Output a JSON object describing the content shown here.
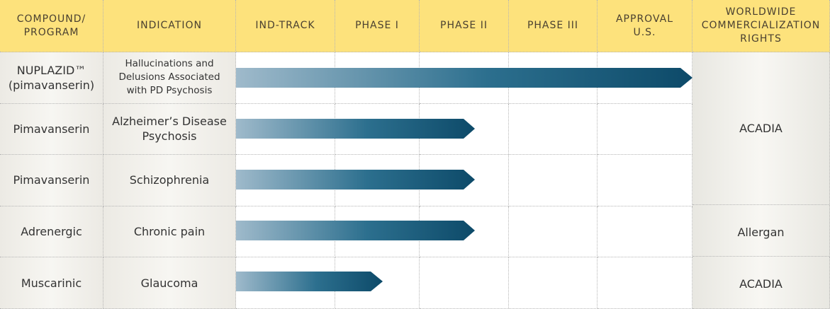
{
  "header": [
    "COMPOUND/ PROGRAM",
    "INDICATION",
    "IND-TRACK",
    "PHASE I",
    "PHASE II",
    "PHASE III",
    "APPROVAL U.S.",
    "WORLDWIDE COMMERCIALIZATION RIGHTS"
  ],
  "rows": [
    {
      "compound": "NUPLAZID™ (pimavanserin)",
      "indication": "Hallucinations and Delusions Associated with PD Psychosis"
    },
    {
      "compound": "Pimavanserin",
      "indication": "Alzheimer’s Disease Psychosis"
    },
    {
      "compound": "Pimavanserin",
      "indication": "Schizophrenia"
    },
    {
      "compound": "Adrenergic",
      "indication": "Chronic pain"
    },
    {
      "compound": "Muscarinic",
      "indication": "Glaucoma"
    }
  ],
  "rights": [
    "ACADIA",
    "Allergan",
    "ACADIA"
  ]
}
